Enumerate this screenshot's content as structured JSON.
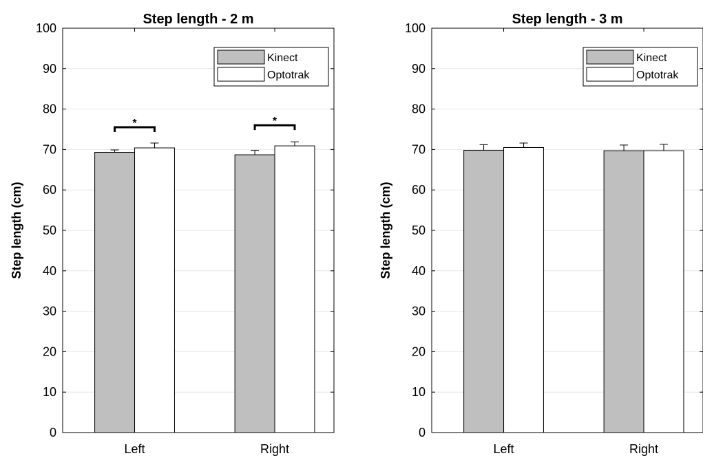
{
  "chart_data": [
    {
      "type": "bar",
      "title": "Step length - 2 m",
      "xlabel": "",
      "ylabel": "Step length (cm)",
      "ylim": [
        0,
        100
      ],
      "yticks": [
        0,
        10,
        20,
        30,
        40,
        50,
        60,
        70,
        80,
        90,
        100
      ],
      "grid": true,
      "legend_position": "top-right",
      "categories": [
        "Left",
        "Right"
      ],
      "series": [
        {
          "name": "Kinect",
          "values": [
            69.3,
            68.7
          ],
          "errors": [
            0.6,
            1.1
          ],
          "color": "#bfbfbf"
        },
        {
          "name": "Optotrak",
          "values": [
            70.4,
            70.9
          ],
          "errors": [
            1.2,
            1.0
          ],
          "color": "#ffffff"
        }
      ],
      "significance": [
        {
          "category": "Left",
          "label": "*",
          "y": 75.5
        },
        {
          "category": "Right",
          "label": "*",
          "y": 76.0
        }
      ]
    },
    {
      "type": "bar",
      "title": "Step length - 3 m",
      "xlabel": "",
      "ylabel": "Step length (cm)",
      "ylim": [
        0,
        100
      ],
      "yticks": [
        0,
        10,
        20,
        30,
        40,
        50,
        60,
        70,
        80,
        90,
        100
      ],
      "grid": true,
      "legend_position": "top-right",
      "categories": [
        "Left",
        "Right"
      ],
      "series": [
        {
          "name": "Kinect",
          "values": [
            69.8,
            69.7
          ],
          "errors": [
            1.4,
            1.4
          ],
          "color": "#bfbfbf"
        },
        {
          "name": "Optotrak",
          "values": [
            70.5,
            69.7
          ],
          "errors": [
            1.1,
            1.6
          ],
          "color": "#ffffff"
        }
      ],
      "significance": []
    }
  ]
}
